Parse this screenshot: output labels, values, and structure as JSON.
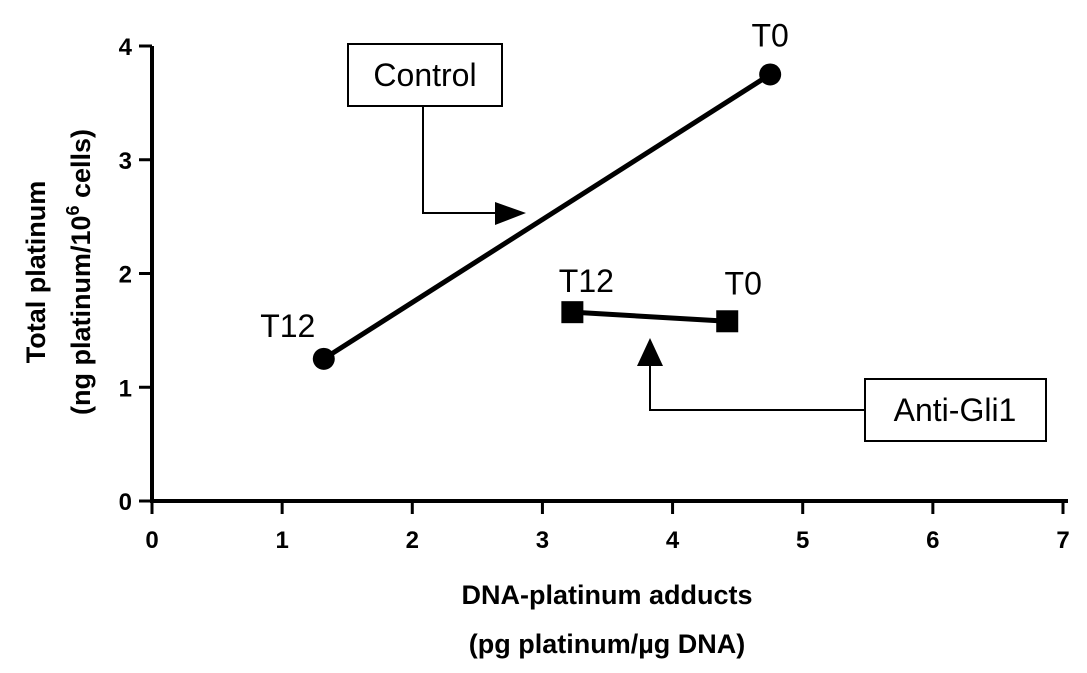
{
  "chart_data": {
    "type": "line",
    "xlabel_line1": "DNA-platinum adducts",
    "xlabel_line2": "(pg platinum/µg DNA)",
    "ylabel_line1": "Total platinum",
    "ylabel_line2_pre": "(ng platinum/10",
    "ylabel_line2_sup": "6",
    "ylabel_line2_post": " cells)",
    "xlim": [
      0,
      7
    ],
    "ylim": [
      0,
      4
    ],
    "xticks": [
      "0",
      "1",
      "2",
      "3",
      "4",
      "5",
      "6",
      "7"
    ],
    "yticks": [
      "0",
      "1",
      "2",
      "3",
      "4"
    ],
    "grid": false,
    "series": [
      {
        "name": "Control",
        "marker": "circle",
        "points": [
          {
            "x": 1.32,
            "y": 1.25,
            "label": "T12"
          },
          {
            "x": 4.75,
            "y": 3.75,
            "label": "T0"
          }
        ]
      },
      {
        "name": "Anti-Gli1",
        "marker": "square",
        "points": [
          {
            "x": 3.23,
            "y": 1.66,
            "label": "T12"
          },
          {
            "x": 4.42,
            "y": 1.58,
            "label": "T0"
          }
        ]
      }
    ],
    "annotations": [
      {
        "text": "Control"
      },
      {
        "text": "Anti-Gli1"
      }
    ]
  }
}
